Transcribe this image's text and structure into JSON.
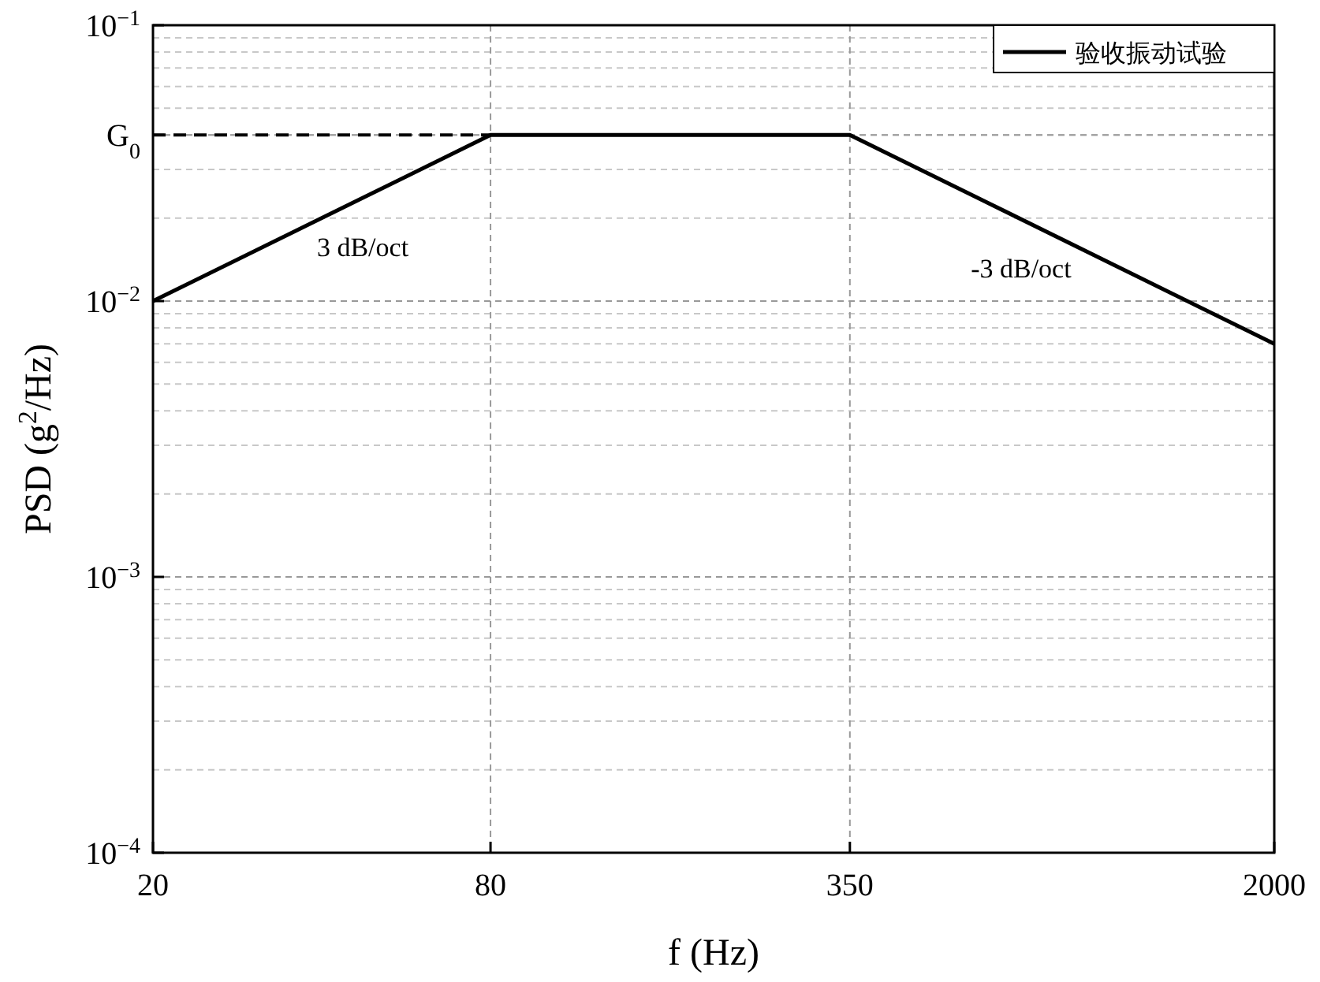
{
  "chart_data": {
    "type": "line",
    "xlabel": "f (Hz)",
    "ylabel": "PSD (g$^{2}$/Hz)",
    "log": "xy",
    "grid": true,
    "legend": "top right",
    "line_style": "solid",
    "marker": "none",
    "x": [
      20,
      80,
      350,
      2000
    ],
    "series": [
      {
        "name": "验收振动试验",
        "color": "#000000",
        "values": [
          0.01,
          0.04,
          0.04,
          0.007
        ]
      }
    ],
    "xlim": [
      20,
      2000
    ],
    "xticks": [
      20,
      80,
      350,
      2000
    ],
    "ylim": [
      0.0001,
      0.1
    ],
    "yticks": [
      {
        "value": 0.0001,
        "label": "10$^{−4}$"
      },
      {
        "value": 0.001,
        "label": "10$^{−3}$"
      },
      {
        "value": 0.01,
        "label": "10$^{−2}$"
      },
      {
        "value": 0.04,
        "label": "G$_{0}$"
      },
      {
        "value": 0.1,
        "label": "10$^{−1}$"
      }
    ],
    "ref_lines": [
      {
        "axis": "y",
        "value": 0.04,
        "color": "#000000",
        "line_style": "dashed"
      }
    ],
    "annotations": [
      "3 dB/oct",
      "-3 dB/oct"
    ]
  }
}
